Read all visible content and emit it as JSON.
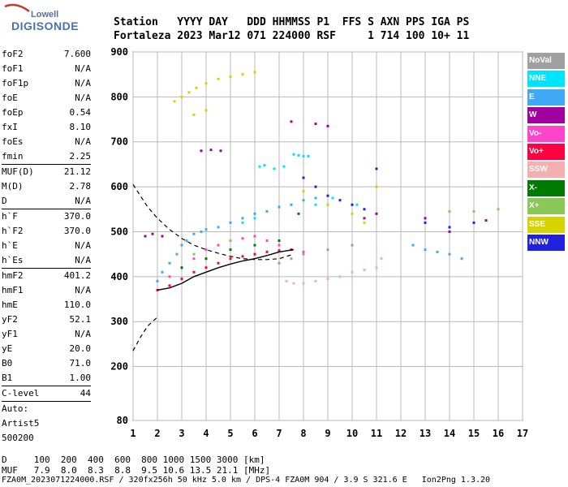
{
  "logo": {
    "top": "Lowell",
    "bottom": "DIGISONDE"
  },
  "header": {
    "line1": "Station   YYYY DAY   DDD HHMMSS P1  FFS S AXN PPS IGA PS",
    "line2": "Fortaleza 2023 Mar12 071 224000 RSF     1 714 100 10+ 11"
  },
  "params": [
    {
      "label": "foF2",
      "value": "7.600"
    },
    {
      "label": "foF1",
      "value": "N/A"
    },
    {
      "label": "foF1p",
      "value": "N/A"
    },
    {
      "label": "foE",
      "value": "N/A"
    },
    {
      "label": "foEp",
      "value": "0.54"
    },
    {
      "label": "fxI",
      "value": "8.10"
    },
    {
      "label": "foEs",
      "value": "N/A"
    },
    {
      "label": "fmin",
      "value": "2.25"
    },
    {
      "sep": true
    },
    {
      "label": "MUF(D)",
      "value": "21.12"
    },
    {
      "label": "M(D)",
      "value": "2.78"
    },
    {
      "label": "D",
      "value": "N/A"
    },
    {
      "sep": true
    },
    {
      "label": "h`F",
      "value": "370.0"
    },
    {
      "label": "h`F2",
      "value": "370.0"
    },
    {
      "label": "h`E",
      "value": "N/A"
    },
    {
      "label": "h`Es",
      "value": "N/A"
    },
    {
      "sep": true
    },
    {
      "label": "hmF2",
      "value": "401.2"
    },
    {
      "label": "hmF1",
      "value": "N/A"
    },
    {
      "label": "hmE",
      "value": "110.0"
    },
    {
      "label": "yF2",
      "value": "52.1"
    },
    {
      "label": "yF1",
      "value": "N/A"
    },
    {
      "label": "yE",
      "value": "20.0"
    },
    {
      "label": "B0",
      "value": "71.0"
    },
    {
      "label": "B1",
      "value": "1.00"
    },
    {
      "sep": true
    },
    {
      "label": "C-level",
      "value": "44"
    },
    {
      "sep": true
    },
    {
      "label": "Auto:",
      "value": ""
    },
    {
      "label": "Artist5",
      "value": ""
    },
    {
      "label": "500200",
      "value": ""
    }
  ],
  "legend": [
    {
      "label": "NoVal",
      "color": "#a0a0a0"
    },
    {
      "label": "NNE",
      "color": "#00e5ff"
    },
    {
      "label": "E",
      "color": "#3fa9f5"
    },
    {
      "label": "W",
      "color": "#a000a0"
    },
    {
      "label": "Vo-",
      "color": "#ff44cc"
    },
    {
      "label": "Vo+",
      "color": "#ff0040"
    },
    {
      "label": "SSW",
      "color": "#f4b0b0"
    },
    {
      "label": "X-",
      "color": "#007a00"
    },
    {
      "label": "X+",
      "color": "#8ac858"
    },
    {
      "label": "SSE",
      "color": "#d4d400"
    },
    {
      "label": "NNW",
      "color": "#2020e0"
    }
  ],
  "footer": {
    "line1": "D     100  200  400  600  800 1000 1500 3000 [km]",
    "line2": "MUF   7.9  8.0  8.3  8.8  9.5 10.6 13.5 21.1 [MHz]",
    "line3": "FZA0M_2023071224000.RSF / 320fx256h 50 kHz 5.0 km / DPS-4 FZA0M 904 / 3.9 S 321.6 E   Ion2Png 1.3.20"
  },
  "chart_data": {
    "type": "scatter",
    "title": "",
    "xlabel": "",
    "ylabel": "",
    "xlim": [
      1,
      17
    ],
    "ylim": [
      80,
      900
    ],
    "xticks": [
      1,
      2,
      3,
      4,
      5,
      6,
      7,
      8,
      9,
      10,
      11,
      12,
      13,
      14,
      15,
      16,
      17
    ],
    "yticks": [
      80,
      200,
      300,
      400,
      500,
      600,
      700,
      800,
      900
    ],
    "grid": true,
    "series": [
      {
        "name": "NNE",
        "color": "#00e5ff",
        "points": [
          [
            7.6,
            672
          ],
          [
            7.8,
            670
          ],
          [
            8.0,
            668
          ],
          [
            8.2,
            668
          ],
          [
            6.2,
            645
          ],
          [
            6.4,
            648
          ],
          [
            6.8,
            640
          ],
          [
            7.2,
            645
          ],
          [
            5.5,
            520
          ],
          [
            6.0,
            530
          ],
          [
            7.0,
            555
          ],
          [
            8.5,
            560
          ],
          [
            9.2,
            575
          ],
          [
            10.2,
            560
          ]
        ]
      },
      {
        "name": "E",
        "color": "#3fa9f5",
        "points": [
          [
            2.0,
            390
          ],
          [
            2.2,
            410
          ],
          [
            2.5,
            430
          ],
          [
            2.8,
            450
          ],
          [
            3.0,
            470
          ],
          [
            3.2,
            480
          ],
          [
            3.5,
            495
          ],
          [
            3.8,
            500
          ],
          [
            4.0,
            505
          ],
          [
            4.5,
            510
          ],
          [
            5.0,
            520
          ],
          [
            5.5,
            530
          ],
          [
            6.0,
            540
          ],
          [
            6.5,
            545
          ],
          [
            7.0,
            555
          ],
          [
            7.5,
            560
          ],
          [
            8.0,
            570
          ],
          [
            8.5,
            575
          ],
          [
            9.0,
            560
          ],
          [
            12.5,
            470
          ],
          [
            13.0,
            460
          ],
          [
            13.5,
            455
          ],
          [
            14.0,
            450
          ],
          [
            14.5,
            440
          ]
        ]
      },
      {
        "name": "W",
        "color": "#a000a0",
        "points": [
          [
            1.5,
            490
          ],
          [
            1.8,
            495
          ],
          [
            2.2,
            490
          ],
          [
            3.8,
            680
          ],
          [
            4.2,
            682
          ],
          [
            4.6,
            680
          ],
          [
            7.5,
            745
          ],
          [
            8.5,
            740
          ],
          [
            9.0,
            735
          ],
          [
            10.5,
            530
          ],
          [
            11.0,
            540
          ],
          [
            13.0,
            530
          ],
          [
            14.0,
            500
          ],
          [
            15.5,
            525
          ]
        ]
      },
      {
        "name": "Vo-",
        "color": "#ff44cc",
        "points": [
          [
            2.5,
            400
          ],
          [
            3.0,
            420
          ],
          [
            3.5,
            440
          ],
          [
            4.0,
            460
          ],
          [
            4.5,
            470
          ],
          [
            5.0,
            480
          ],
          [
            5.5,
            485
          ],
          [
            6.0,
            490
          ],
          [
            6.5,
            480
          ],
          [
            7.0,
            470
          ],
          [
            7.5,
            460
          ],
          [
            8.0,
            455
          ]
        ]
      },
      {
        "name": "Vo+",
        "color": "#ff0040",
        "points": [
          [
            2.0,
            370
          ],
          [
            2.5,
            380
          ],
          [
            3.0,
            395
          ],
          [
            3.5,
            410
          ],
          [
            4.0,
            420
          ],
          [
            4.5,
            430
          ],
          [
            5.0,
            440
          ],
          [
            5.5,
            445
          ],
          [
            6.0,
            450
          ],
          [
            6.5,
            455
          ],
          [
            7.0,
            458
          ],
          [
            7.5,
            460
          ]
        ]
      },
      {
        "name": "SSW",
        "color": "#f4b0b0",
        "points": [
          [
            7.3,
            390
          ],
          [
            7.6,
            385
          ],
          [
            8.0,
            385
          ],
          [
            8.5,
            390
          ],
          [
            9.0,
            395
          ],
          [
            9.5,
            400
          ],
          [
            10.0,
            410
          ],
          [
            10.5,
            415
          ],
          [
            11.0,
            420
          ],
          [
            11.2,
            440
          ]
        ]
      },
      {
        "name": "X-",
        "color": "#007a00",
        "points": [
          [
            3.0,
            420
          ],
          [
            4.0,
            440
          ],
          [
            5.0,
            460
          ],
          [
            6.0,
            470
          ],
          [
            7.0,
            480
          ],
          [
            7.8,
            540
          ]
        ]
      },
      {
        "name": "X+",
        "color": "#8ac858",
        "points": [
          [
            14.0,
            545
          ],
          [
            15.0,
            545
          ],
          [
            16.0,
            550
          ],
          [
            3.5,
            450
          ],
          [
            5.0,
            480
          ]
        ]
      },
      {
        "name": "SSE",
        "color": "#d4d400",
        "points": [
          [
            2.7,
            790
          ],
          [
            3.0,
            800
          ],
          [
            3.3,
            810
          ],
          [
            3.6,
            820
          ],
          [
            4.0,
            830
          ],
          [
            4.5,
            840
          ],
          [
            5.0,
            845
          ],
          [
            5.5,
            850
          ],
          [
            6.0,
            855
          ],
          [
            3.5,
            760
          ],
          [
            4.0,
            770
          ],
          [
            8.0,
            590
          ],
          [
            8.5,
            600
          ],
          [
            9.0,
            560
          ],
          [
            10.0,
            540
          ],
          [
            10.5,
            520
          ],
          [
            11.0,
            600
          ]
        ]
      },
      {
        "name": "NNW",
        "color": "#2020e0",
        "points": [
          [
            8.0,
            620
          ],
          [
            8.5,
            600
          ],
          [
            9.0,
            580
          ],
          [
            9.5,
            570
          ],
          [
            10.0,
            560
          ],
          [
            10.5,
            550
          ],
          [
            11.0,
            640
          ],
          [
            13.0,
            520
          ],
          [
            14.0,
            510
          ],
          [
            15.0,
            520
          ]
        ]
      },
      {
        "name": "NoVal",
        "color": "#a0a0a0",
        "points": [
          [
            7.0,
            430
          ],
          [
            7.5,
            440
          ],
          [
            8.0,
            450
          ],
          [
            9.0,
            460
          ],
          [
            10.0,
            470
          ]
        ]
      }
    ],
    "profile_solid": [
      [
        2.0,
        370
      ],
      [
        2.5,
        375
      ],
      [
        3.0,
        385
      ],
      [
        3.5,
        400
      ],
      [
        4.0,
        410
      ],
      [
        4.5,
        420
      ],
      [
        5.0,
        428
      ],
      [
        5.5,
        435
      ],
      [
        6.0,
        440
      ],
      [
        6.5,
        447
      ],
      [
        7.0,
        455
      ],
      [
        7.6,
        460
      ]
    ],
    "profile_dashed": [
      [
        1.0,
        235
      ],
      [
        1.3,
        265
      ],
      [
        1.6,
        290
      ],
      [
        2.0,
        310
      ]
    ],
    "trace_dashed": [
      [
        1.0,
        605
      ],
      [
        1.3,
        580
      ],
      [
        1.6,
        555
      ],
      [
        2.0,
        530
      ],
      [
        2.5,
        505
      ],
      [
        3.0,
        485
      ],
      [
        3.5,
        470
      ],
      [
        4.0,
        460
      ],
      [
        4.5,
        452
      ],
      [
        5.0,
        445
      ],
      [
        5.5,
        440
      ],
      [
        6.0,
        438
      ],
      [
        6.5,
        438
      ],
      [
        7.0,
        440
      ],
      [
        7.6,
        450
      ]
    ]
  }
}
